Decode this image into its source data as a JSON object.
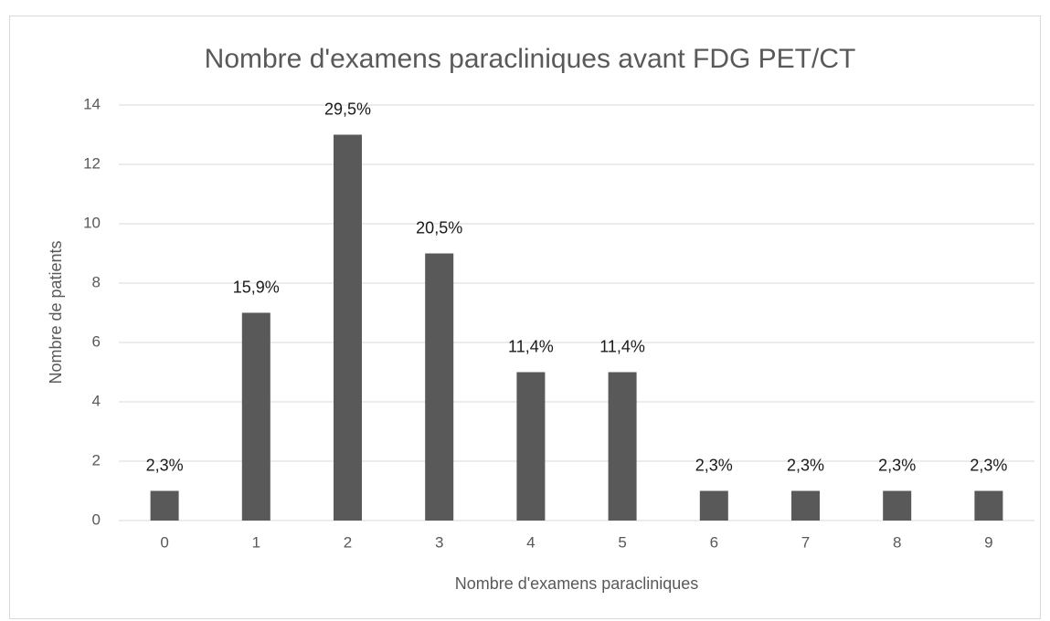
{
  "chart_data": {
    "type": "bar",
    "title": "Nombre d'examens paracliniques avant FDG PET/CT",
    "x_label": "Nombre d'examens paracliniques",
    "y_label": "Nombre de patients",
    "categories": [
      "0",
      "1",
      "2",
      "3",
      "4",
      "5",
      "6",
      "7",
      "8",
      "9"
    ],
    "values": [
      1,
      7,
      13,
      9,
      5,
      5,
      1,
      1,
      1,
      1
    ],
    "data_labels": [
      "2,3%",
      "15,9%",
      "29,5%",
      "20,5%",
      "11,4%",
      "11,4%",
      "2,3%",
      "2,3%",
      "2,3%",
      "2,3%"
    ],
    "color": "#595959",
    "ylim": [
      0,
      14
    ],
    "yticks": [
      0,
      2,
      4,
      6,
      8,
      10,
      12,
      14
    ],
    "grid": true
  }
}
